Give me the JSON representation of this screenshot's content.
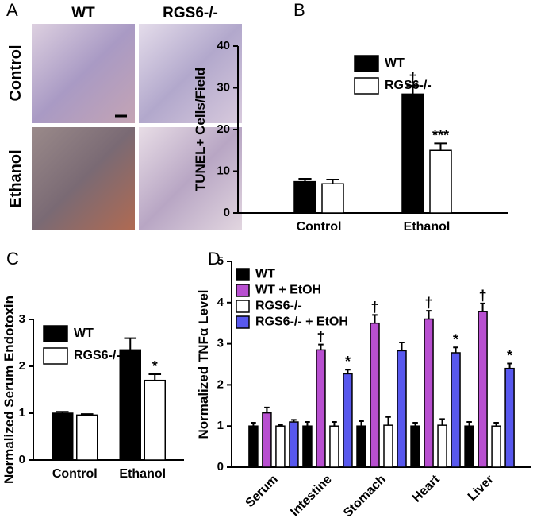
{
  "panel_a": {
    "label": "A",
    "columns": [
      "WT",
      "RGS6-/-"
    ],
    "rows": [
      "Control",
      "Ethanol"
    ]
  },
  "chart_data": [
    {
      "type": "bar",
      "panel": "B",
      "y_label": "TUNEL+ Cells/Field",
      "legend": "upper left",
      "grid": false,
      "categories": [
        "Control",
        "Ethanol"
      ],
      "ylim": [
        0,
        40
      ],
      "yticks": [
        0,
        10,
        20,
        30,
        40
      ],
      "series": [
        {
          "name": "WT",
          "color": "#000000",
          "values": [
            7.5,
            28.5
          ],
          "errors": [
            0.7,
            2
          ],
          "markers": [
            null,
            "†"
          ]
        },
        {
          "name": "RGS6-/-",
          "color": "#ffffff",
          "values": [
            7,
            15
          ],
          "errors": [
            1,
            1.7
          ],
          "markers": [
            null,
            "***"
          ]
        }
      ]
    },
    {
      "type": "bar",
      "panel": "C",
      "y_label": "Normalized Serum Endotoxin",
      "legend": "upper left",
      "grid": false,
      "categories": [
        "Control",
        "Ethanol"
      ],
      "ylim": [
        0,
        3
      ],
      "yticks": [
        0,
        1,
        2,
        3
      ],
      "series": [
        {
          "name": "WT",
          "color": "#000000",
          "values": [
            1.0,
            2.35
          ],
          "errors": [
            0.03,
            0.25
          ],
          "markers": [
            null,
            null
          ]
        },
        {
          "name": "RGS6-/-",
          "color": "#ffffff",
          "values": [
            0.96,
            1.7
          ],
          "errors": [
            0.02,
            0.13
          ],
          "markers": [
            null,
            "*"
          ]
        }
      ]
    },
    {
      "type": "bar",
      "panel": "D",
      "y_label": "Normalized TNFα Level",
      "legend": "upper left",
      "grid": false,
      "categories": [
        "Serum",
        "Intestine",
        "Stomach",
        "Heart",
        "Liver"
      ],
      "ylim": [
        0,
        5
      ],
      "yticks": [
        0,
        1,
        2,
        3,
        4,
        5
      ],
      "series": [
        {
          "name": "WT",
          "color": "#000000",
          "values": [
            1,
            1,
            1,
            1,
            1
          ],
          "errors": [
            0.08,
            0.1,
            0.12,
            0.08,
            0.1
          ],
          "markers": [
            null,
            null,
            null,
            null,
            null
          ]
        },
        {
          "name": "WT + EtOH",
          "color": "#b84fd0",
          "values": [
            1.32,
            2.85,
            3.5,
            3.6,
            3.78
          ],
          "errors": [
            0.13,
            0.13,
            0.2,
            0.2,
            0.2
          ],
          "markers": [
            null,
            "†",
            "†",
            "†",
            "†"
          ]
        },
        {
          "name": "RGS6-/-",
          "color": "#ffffff",
          "values": [
            1,
            1,
            1.02,
            1.02,
            1
          ],
          "errors": [
            0.03,
            0.1,
            0.2,
            0.15,
            0.08
          ],
          "markers": [
            null,
            null,
            null,
            null,
            null
          ]
        },
        {
          "name": "RGS6-/- + EtOH",
          "color": "#5858ee",
          "values": [
            1.1,
            2.27,
            2.83,
            2.78,
            2.4
          ],
          "errors": [
            0.05,
            0.1,
            0.2,
            0.13,
            0.12
          ],
          "markers": [
            null,
            "*",
            null,
            "*",
            "*"
          ]
        }
      ]
    }
  ]
}
